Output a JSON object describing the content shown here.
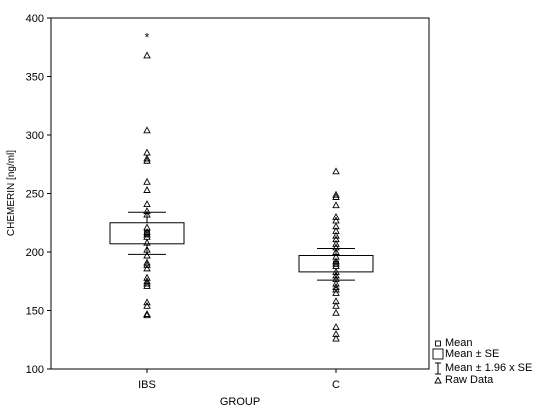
{
  "chart_data": {
    "type": "box",
    "xlabel": "GROUP",
    "ylabel": "CHEMERIN [ng/ml]",
    "ylim": [
      100,
      400
    ],
    "yticks": [
      100,
      150,
      200,
      250,
      300,
      350,
      400
    ],
    "grid": false,
    "legend_placement": "bottom-right",
    "legend": [
      "Mean",
      "Mean ± SE",
      "Mean ± 1.96 x SE",
      "Raw Data"
    ],
    "groups": [
      {
        "category": "IBS",
        "mean": 216,
        "se_low": 207,
        "se_high": 225,
        "ci_low": 198,
        "ci_high": 234,
        "raw": [
          384,
          368,
          304,
          285,
          280,
          278,
          260,
          253,
          241,
          235,
          232,
          221,
          217,
          215,
          213,
          208,
          202,
          197,
          191,
          189,
          186,
          178,
          175,
          173,
          171,
          157,
          154,
          147,
          146
        ],
        "outlier_marker": 384
      },
      {
        "category": "C",
        "mean": 190,
        "se_low": 183,
        "se_high": 197,
        "ci_low": 176,
        "ci_high": 203,
        "raw": [
          269,
          249,
          247,
          240,
          230,
          227,
          222,
          218,
          214,
          211,
          207,
          204,
          200,
          196,
          192,
          190,
          188,
          183,
          180,
          177,
          173,
          170,
          168,
          165,
          158,
          154,
          148,
          136,
          130,
          126
        ]
      }
    ]
  }
}
